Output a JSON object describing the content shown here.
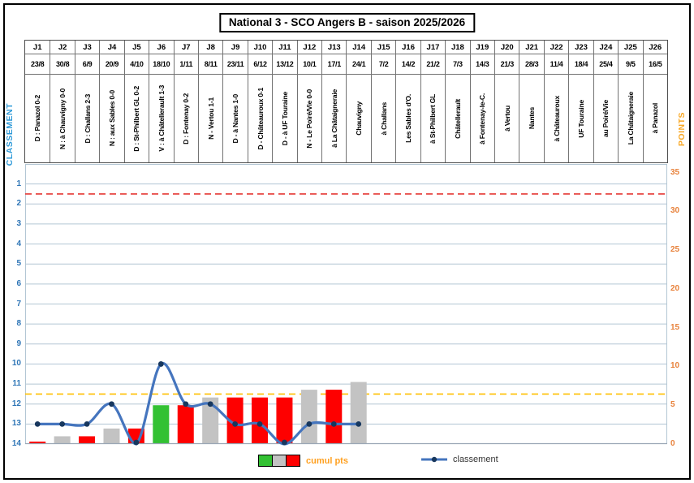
{
  "title": "National 3 - SCO Angers B - saison 2025/2026",
  "axes": {
    "left_title": "CLASSEMENT",
    "right_title": "POINTS",
    "left_ticks": [
      1,
      2,
      3,
      4,
      5,
      6,
      7,
      8,
      9,
      10,
      11,
      12,
      13,
      14
    ],
    "right_ticks": [
      0,
      5,
      10,
      15,
      20,
      25,
      30,
      35
    ]
  },
  "legend": {
    "bars_label": "cumul pts",
    "line_label": "classement"
  },
  "colors": {
    "win_bar": "#33c133",
    "draw_bar": "#c3c3c3",
    "loss_bar": "#fe0000",
    "line": "#4575be",
    "marker": "#17375e",
    "grid": "#b3c6d4",
    "axis_line": "#9aa7b5",
    "promotion_dash": "#e53935",
    "relegation_dash": "#ffc000",
    "left_tick_text": "#2e75b6",
    "left_title_text": "#2e9ad8",
    "right_tick_text": "#e8823c",
    "right_title_text": "#f9a825",
    "cumul_label_text": "#ffa020"
  },
  "schedule": {
    "columns": [
      {
        "j": "J1",
        "date": "23/8",
        "opponent": "D : Panazol 0-2"
      },
      {
        "j": "J2",
        "date": "30/8",
        "opponent": "N : à Chauvigny 0-0"
      },
      {
        "j": "J3",
        "date": "6/9",
        "opponent": "D : Challans 2-3"
      },
      {
        "j": "J4",
        "date": "20/9",
        "opponent": "N : aux Sables 0-0"
      },
      {
        "j": "J5",
        "date": "4/10",
        "opponent": "D : St-Philbert GL 0-2"
      },
      {
        "j": "J6",
        "date": "18/10",
        "opponent": "V : à Châtellerault 1-3"
      },
      {
        "j": "J7",
        "date": "1/11",
        "opponent": "D : Fontenay 0-2"
      },
      {
        "j": "J8",
        "date": "8/11",
        "opponent": "N - Vertou 1-1"
      },
      {
        "j": "J9",
        "date": "23/11",
        "opponent": "D - à Nantes 1-0"
      },
      {
        "j": "J10",
        "date": "6/12",
        "opponent": "D - Châteauroux 0-1"
      },
      {
        "j": "J11",
        "date": "13/12",
        "opponent": "D - à UF Touraine"
      },
      {
        "j": "J12",
        "date": "10/1",
        "opponent": "N - Le Poiré/Vie 0-0"
      },
      {
        "j": "J13",
        "date": "17/1",
        "opponent": "à La Châtaigneraie"
      },
      {
        "j": "J14",
        "date": "24/1",
        "opponent": "Chauvigny"
      },
      {
        "j": "J15",
        "date": "7/2",
        "opponent": "à Challans"
      },
      {
        "j": "J16",
        "date": "14/2",
        "opponent": "Les Sables d'O."
      },
      {
        "j": "J17",
        "date": "21/2",
        "opponent": "à St-Philbert GL"
      },
      {
        "j": "J18",
        "date": "7/3",
        "opponent": "Châtellerault"
      },
      {
        "j": "J19",
        "date": "14/3",
        "opponent": "à Fontenay-le-C."
      },
      {
        "j": "J20",
        "date": "21/3",
        "opponent": "à Vertou"
      },
      {
        "j": "J21",
        "date": "28/3",
        "opponent": "Nantes"
      },
      {
        "j": "J22",
        "date": "11/4",
        "opponent": "à Châteauroux"
      },
      {
        "j": "J23",
        "date": "18/4",
        "opponent": "UF Touraine"
      },
      {
        "j": "J24",
        "date": "25/4",
        "opponent": "au Poiré/Vie"
      },
      {
        "j": "J25",
        "date": "9/5",
        "opponent": "La Châtaigneraie"
      },
      {
        "j": "J26",
        "date": "16/5",
        "opponent": "à Panazol"
      }
    ]
  },
  "chart_data": {
    "type": "combo",
    "title": "National 3 - SCO Angers B - saison 2025/2026",
    "categories": [
      "J1",
      "J2",
      "J3",
      "J4",
      "J5",
      "J6",
      "J7",
      "J8",
      "J9",
      "J10",
      "J11",
      "J12",
      "J13",
      "J14",
      "J15",
      "J16",
      "J17",
      "J18",
      "J19",
      "J20",
      "J21",
      "J22",
      "J23",
      "J24",
      "J25",
      "J26"
    ],
    "series": [
      {
        "name": "cumul pts",
        "type": "bar",
        "axis": "points",
        "values": [
          0,
          1,
          1,
          2,
          2,
          5,
          5,
          6,
          6,
          6,
          6,
          7,
          7,
          8
        ],
        "results": [
          "D",
          "N",
          "D",
          "N",
          "D",
          "V",
          "D",
          "N",
          "D",
          "D",
          "D",
          "N",
          "D",
          "N"
        ]
      },
      {
        "name": "classement",
        "type": "line",
        "axis": "classement",
        "values": [
          13,
          13,
          13,
          12,
          14,
          10,
          12,
          12,
          13,
          13,
          14,
          13,
          13,
          13
        ]
      }
    ],
    "left_axis": {
      "label": "CLASSEMENT",
      "min": 0,
      "max": 14,
      "inverted": true,
      "ticks": [
        1,
        2,
        3,
        4,
        5,
        6,
        7,
        8,
        9,
        10,
        11,
        12,
        13,
        14
      ]
    },
    "right_axis": {
      "label": "POINTS",
      "min": 0,
      "max": 36.1,
      "ticks": [
        0,
        5,
        10,
        15,
        20,
        25,
        30,
        35
      ]
    },
    "reference_lines": [
      {
        "name": "red-dashed-line",
        "axis": "classement",
        "value": 1.5,
        "style": "dashed"
      },
      {
        "name": "orange-dashed-line",
        "axis": "classement",
        "value": 11.5,
        "style": "dashed"
      }
    ],
    "grid": true,
    "legend_position": "bottom"
  }
}
